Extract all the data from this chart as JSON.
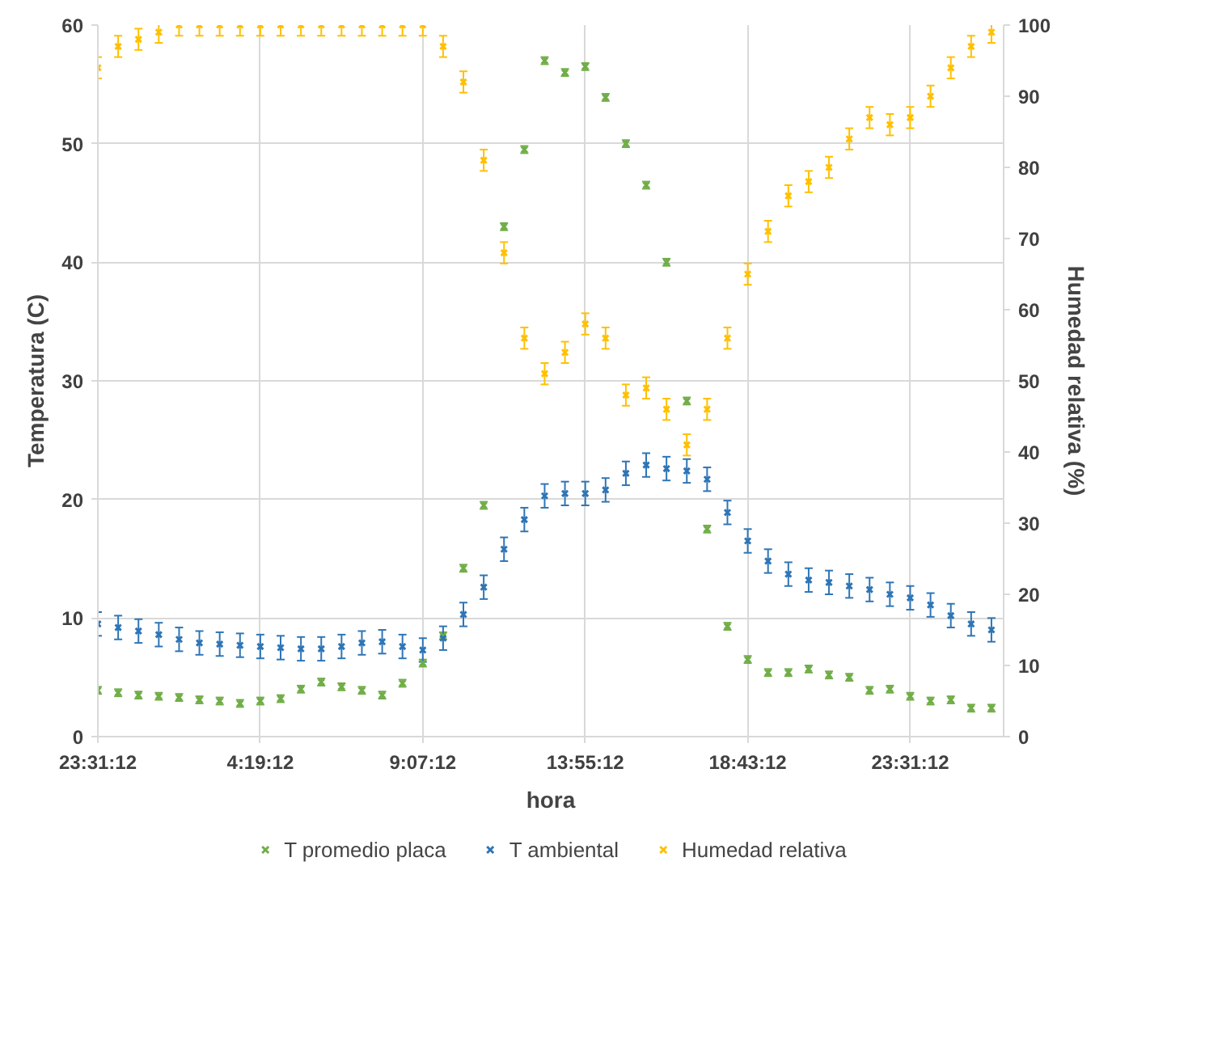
{
  "chart_data": {
    "type": "scatter",
    "xlabel": "hora",
    "ylabel": "Temperatura (C)",
    "y2label": "Humedad relativa (%)",
    "categories": [
      "23:31:12",
      null,
      null,
      null,
      null,
      null,
      null,
      null,
      "4:19:12",
      null,
      null,
      null,
      null,
      null,
      null,
      null,
      "9:07:12",
      null,
      null,
      null,
      null,
      null,
      null,
      null,
      "13:55:12",
      null,
      null,
      null,
      null,
      null,
      null,
      null,
      "18:43:12",
      null,
      null,
      null,
      null,
      null,
      null,
      null,
      "23:31:12",
      null,
      null,
      null,
      null
    ],
    "ylim": [
      0,
      60
    ],
    "yticks": [
      0,
      10,
      20,
      30,
      40,
      50,
      60
    ],
    "y2lim": [
      0,
      100
    ],
    "y2ticks": [
      0,
      10,
      20,
      30,
      40,
      50,
      60,
      70,
      80,
      90,
      100
    ],
    "grid": true,
    "legend": "bottom",
    "marker": "cross",
    "series": [
      {
        "name": "T promedio placa",
        "color": "#70ad47",
        "values": [
          3.9,
          3.7,
          3.5,
          3.4,
          3.3,
          3.1,
          3.0,
          2.8,
          3.0,
          3.2,
          4.0,
          4.6,
          4.2,
          3.9,
          3.5,
          4.5,
          6.2,
          8.5,
          14.2,
          19.5,
          43.0,
          49.5,
          57.0,
          56.0,
          56.5,
          53.9,
          50.0,
          46.5,
          40.0,
          28.3,
          17.5,
          9.3,
          6.5,
          5.4,
          5.4,
          5.7,
          5.2,
          5.0,
          3.9,
          4.0,
          3.4,
          3.0,
          3.1,
          2.4,
          2.4
        ],
        "errors": [
          0.3,
          0.3,
          0.3,
          0.3,
          0.3,
          0.3,
          0.3,
          0.3,
          0.3,
          0.3,
          0.3,
          0.3,
          0.3,
          0.3,
          0.3,
          0.3,
          0.3,
          0.3,
          0.3,
          0.3,
          0.3,
          0.3,
          0.3,
          0.3,
          0.3,
          0.3,
          0.3,
          0.3,
          0.3,
          0.3,
          0.3,
          0.3,
          0.3,
          0.3,
          0.3,
          0.3,
          0.3,
          0.3,
          0.3,
          0.3,
          0.3,
          0.3,
          0.3,
          0.3,
          0.3
        ]
      },
      {
        "name": "T ambiental",
        "color": "#2e75b6",
        "values": [
          9.5,
          9.2,
          8.9,
          8.6,
          8.2,
          7.9,
          7.8,
          7.7,
          7.6,
          7.5,
          7.4,
          7.4,
          7.6,
          7.9,
          8.0,
          7.6,
          7.3,
          8.3,
          10.3,
          12.6,
          15.8,
          18.3,
          20.3,
          20.5,
          20.5,
          20.8,
          22.2,
          22.9,
          22.6,
          22.4,
          21.7,
          18.9,
          16.5,
          14.8,
          13.7,
          13.2,
          13.0,
          12.7,
          12.4,
          12.0,
          11.7,
          11.1,
          10.2,
          9.5,
          9.0
        ],
        "errors": [
          1,
          1,
          1,
          1,
          1,
          1,
          1,
          1,
          1,
          1,
          1,
          1,
          1,
          1,
          1,
          1,
          1,
          1,
          1,
          1,
          1,
          1,
          1,
          1,
          1,
          1,
          1,
          1,
          1,
          1,
          1,
          1,
          1,
          1,
          1,
          1,
          1,
          1,
          1,
          1,
          1,
          1,
          1,
          1,
          1
        ]
      },
      {
        "name": "Humedad relativa",
        "color": "#ffc000",
        "axis": "y2",
        "values": [
          94,
          97,
          98,
          99,
          100,
          100,
          100,
          100,
          100,
          100,
          100,
          100,
          100,
          100,
          100,
          100,
          100,
          97,
          92,
          81,
          68,
          56,
          51,
          54,
          58,
          56,
          48,
          49,
          46,
          41,
          46,
          56,
          65,
          71,
          76,
          78,
          80,
          84,
          87,
          86,
          87,
          90,
          94,
          97,
          99
        ],
        "errors": [
          1.5,
          1.5,
          1.5,
          1.5,
          1.5,
          1.5,
          1.5,
          1.5,
          1.5,
          1.5,
          1.5,
          1.5,
          1.5,
          1.5,
          1.5,
          1.5,
          1.5,
          1.5,
          1.5,
          1.5,
          1.5,
          1.5,
          1.5,
          1.5,
          1.5,
          1.5,
          1.5,
          1.5,
          1.5,
          1.5,
          1.5,
          1.5,
          1.5,
          1.5,
          1.5,
          1.5,
          1.5,
          1.5,
          1.5,
          1.5,
          1.5,
          1.5,
          1.5,
          1.5,
          1.5
        ]
      }
    ]
  }
}
